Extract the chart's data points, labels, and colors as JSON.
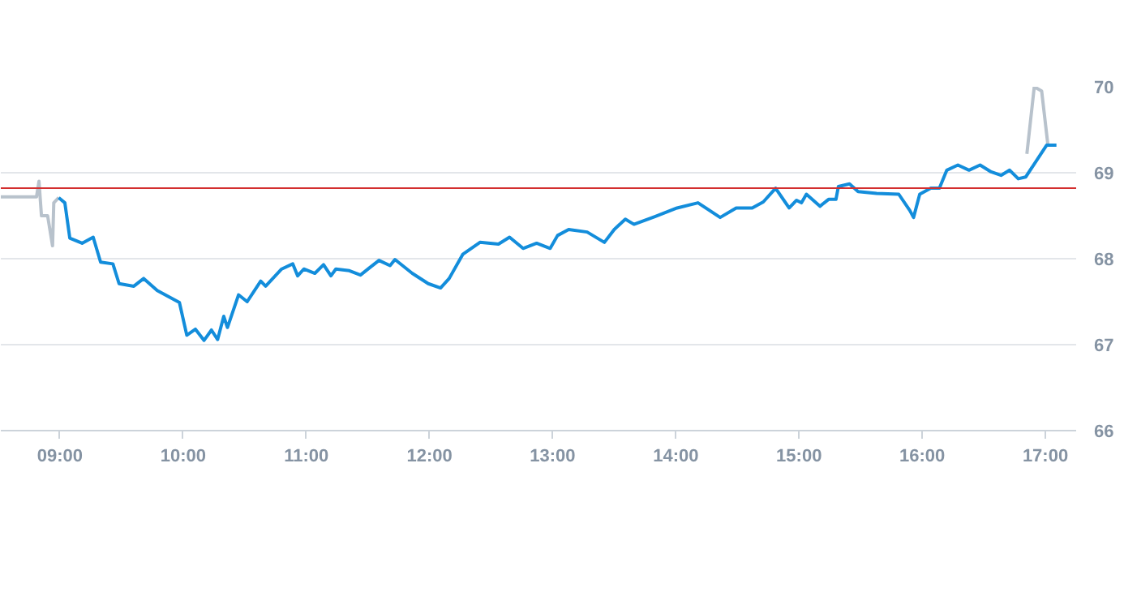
{
  "chart_data": {
    "type": "line",
    "xlim": [
      8.52,
      17.25
    ],
    "ylim": [
      66,
      70
    ],
    "xticks": [
      {
        "value": 9,
        "label": "09:00"
      },
      {
        "value": 10,
        "label": "10:00"
      },
      {
        "value": 11,
        "label": "11:00"
      },
      {
        "value": 12,
        "label": "12:00"
      },
      {
        "value": 13,
        "label": "13:00"
      },
      {
        "value": 14,
        "label": "14:00"
      },
      {
        "value": 15,
        "label": "15:00"
      },
      {
        "value": 16,
        "label": "16:00"
      },
      {
        "value": 17,
        "label": "17:00"
      }
    ],
    "yticks": [
      66,
      67,
      68,
      69,
      70
    ],
    "grid": "y",
    "marker": "none",
    "line_style": "solid",
    "ref_lines": [
      {
        "axis": "y",
        "value": 68.82,
        "color": "#d32f2f"
      }
    ],
    "series": [
      {
        "color": "#b8c2cc",
        "x": [
          8.52,
          8.81,
          8.83,
          8.85,
          8.9,
          8.94,
          8.95,
          8.99
        ],
        "values": [
          68.72,
          68.72,
          68.9,
          68.5,
          68.5,
          68.15,
          68.65,
          68.71
        ]
      },
      {
        "color": "#b8c2cc",
        "x": [
          16.85,
          16.91,
          16.97,
          17.02
        ],
        "values": [
          69.22,
          70.0,
          69.95,
          69.33
        ]
      },
      {
        "color": "#138ddb",
        "x": [
          8.99,
          9.04,
          9.08,
          9.18,
          9.27,
          9.33,
          9.43,
          9.48,
          9.6,
          9.68,
          9.79,
          9.97,
          10.03,
          10.1,
          10.17,
          10.23,
          10.28,
          10.33,
          10.36,
          10.45,
          10.52,
          10.63,
          10.67,
          10.8,
          10.89,
          10.93,
          10.98,
          11.07,
          11.14,
          11.2,
          11.24,
          11.35,
          11.44,
          11.51,
          11.59,
          11.68,
          11.72,
          11.86,
          11.99,
          12.09,
          12.16,
          12.27,
          12.41,
          12.56,
          12.65,
          12.76,
          12.87,
          12.98,
          13.04,
          13.13,
          13.28,
          13.42,
          13.5,
          13.59,
          13.66,
          13.83,
          14.01,
          14.18,
          14.36,
          14.49,
          14.62,
          14.71,
          14.81,
          14.92,
          14.98,
          15.02,
          15.06,
          15.17,
          15.24,
          15.3,
          15.32,
          15.41,
          15.48,
          15.63,
          15.81,
          15.9,
          15.93,
          15.98,
          16.07,
          16.14,
          16.2,
          16.29,
          16.38,
          16.47,
          16.56,
          16.64,
          16.71,
          16.78,
          16.84,
          17.01,
          17.09
        ],
        "values": [
          68.71,
          68.65,
          68.24,
          68.18,
          68.25,
          67.96,
          67.94,
          67.71,
          67.68,
          67.77,
          67.63,
          67.49,
          67.11,
          67.18,
          67.05,
          67.17,
          67.06,
          67.33,
          67.2,
          67.58,
          67.5,
          67.74,
          67.68,
          67.88,
          67.94,
          67.8,
          67.88,
          67.83,
          67.93,
          67.8,
          67.88,
          67.86,
          67.81,
          67.89,
          67.98,
          67.92,
          67.99,
          67.83,
          67.71,
          67.66,
          67.77,
          68.05,
          68.19,
          68.17,
          68.25,
          68.12,
          68.18,
          68.12,
          68.27,
          68.34,
          68.31,
          68.19,
          68.34,
          68.46,
          68.4,
          68.49,
          68.59,
          68.65,
          68.48,
          68.59,
          68.59,
          68.66,
          68.82,
          68.59,
          68.68,
          68.65,
          68.75,
          68.61,
          68.69,
          68.69,
          68.84,
          68.87,
          68.78,
          68.76,
          68.75,
          68.56,
          68.48,
          68.75,
          68.82,
          68.82,
          69.03,
          69.09,
          69.03,
          69.09,
          69.01,
          68.97,
          69.03,
          68.93,
          68.95,
          69.32,
          69.32
        ]
      }
    ]
  }
}
